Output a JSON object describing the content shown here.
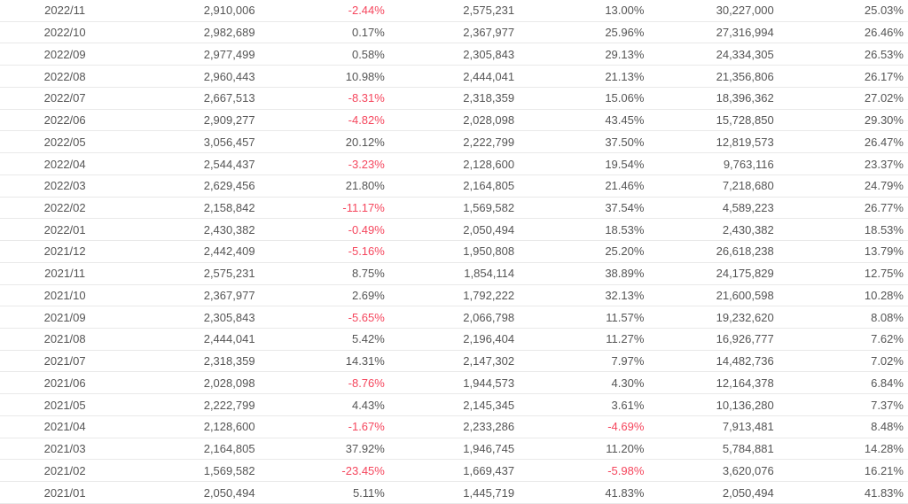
{
  "meta": {
    "text_color": "#555555",
    "negative_color": "#f5465d",
    "border_color": "#e9e9e9",
    "background_color": "#ffffff"
  },
  "table": {
    "rows": [
      [
        "2022/11",
        "2,910,006",
        "-2.44%",
        "2,575,231",
        "13.00%",
        "30,227,000",
        "25.03%"
      ],
      [
        "2022/10",
        "2,982,689",
        "0.17%",
        "2,367,977",
        "25.96%",
        "27,316,994",
        "26.46%"
      ],
      [
        "2022/09",
        "2,977,499",
        "0.58%",
        "2,305,843",
        "29.13%",
        "24,334,305",
        "26.53%"
      ],
      [
        "2022/08",
        "2,960,443",
        "10.98%",
        "2,444,041",
        "21.13%",
        "21,356,806",
        "26.17%"
      ],
      [
        "2022/07",
        "2,667,513",
        "-8.31%",
        "2,318,359",
        "15.06%",
        "18,396,362",
        "27.02%"
      ],
      [
        "2022/06",
        "2,909,277",
        "-4.82%",
        "2,028,098",
        "43.45%",
        "15,728,850",
        "29.30%"
      ],
      [
        "2022/05",
        "3,056,457",
        "20.12%",
        "2,222,799",
        "37.50%",
        "12,819,573",
        "26.47%"
      ],
      [
        "2022/04",
        "2,544,437",
        "-3.23%",
        "2,128,600",
        "19.54%",
        "9,763,116",
        "23.37%"
      ],
      [
        "2022/03",
        "2,629,456",
        "21.80%",
        "2,164,805",
        "21.46%",
        "7,218,680",
        "24.79%"
      ],
      [
        "2022/02",
        "2,158,842",
        "-11.17%",
        "1,569,582",
        "37.54%",
        "4,589,223",
        "26.77%"
      ],
      [
        "2022/01",
        "2,430,382",
        "-0.49%",
        "2,050,494",
        "18.53%",
        "2,430,382",
        "18.53%"
      ],
      [
        "2021/12",
        "2,442,409",
        "-5.16%",
        "1,950,808",
        "25.20%",
        "26,618,238",
        "13.79%"
      ],
      [
        "2021/11",
        "2,575,231",
        "8.75%",
        "1,854,114",
        "38.89%",
        "24,175,829",
        "12.75%"
      ],
      [
        "2021/10",
        "2,367,977",
        "2.69%",
        "1,792,222",
        "32.13%",
        "21,600,598",
        "10.28%"
      ],
      [
        "2021/09",
        "2,305,843",
        "-5.65%",
        "2,066,798",
        "11.57%",
        "19,232,620",
        "8.08%"
      ],
      [
        "2021/08",
        "2,444,041",
        "5.42%",
        "2,196,404",
        "11.27%",
        "16,926,777",
        "7.62%"
      ],
      [
        "2021/07",
        "2,318,359",
        "14.31%",
        "2,147,302",
        "7.97%",
        "14,482,736",
        "7.02%"
      ],
      [
        "2021/06",
        "2,028,098",
        "-8.76%",
        "1,944,573",
        "4.30%",
        "12,164,378",
        "6.84%"
      ],
      [
        "2021/05",
        "2,222,799",
        "4.43%",
        "2,145,345",
        "3.61%",
        "10,136,280",
        "7.37%"
      ],
      [
        "2021/04",
        "2,128,600",
        "-1.67%",
        "2,233,286",
        "-4.69%",
        "7,913,481",
        "8.48%"
      ],
      [
        "2021/03",
        "2,164,805",
        "37.92%",
        "1,946,745",
        "11.20%",
        "5,784,881",
        "14.28%"
      ],
      [
        "2021/02",
        "1,569,582",
        "-23.45%",
        "1,669,437",
        "-5.98%",
        "3,620,076",
        "16.21%"
      ],
      [
        "2021/01",
        "2,050,494",
        "5.11%",
        "1,445,719",
        "41.83%",
        "2,050,494",
        "41.83%"
      ]
    ]
  }
}
